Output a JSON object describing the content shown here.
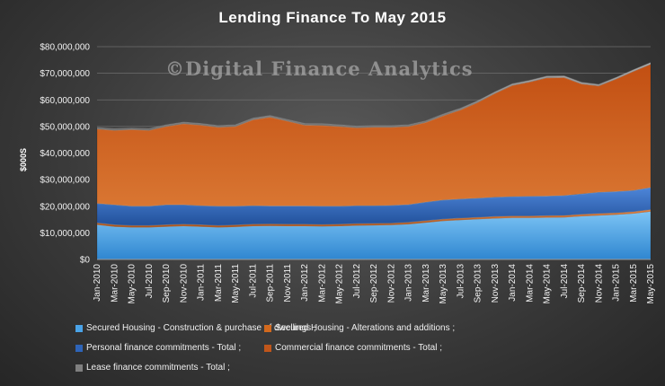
{
  "chart_data": {
    "type": "area",
    "stacked": true,
    "title": "Lending Finance To May 2015",
    "watermark": "©Digital Finance Analytics",
    "ylabel": "$000S",
    "xlabel": "",
    "ylim": [
      0,
      80000000
    ],
    "yticks": [
      "$0",
      "$10,000,000",
      "$20,000,000",
      "$30,000,000",
      "$40,000,000",
      "$50,000,000",
      "$60,000,000",
      "$70,000,000",
      "$80,000,000"
    ],
    "xticks": [
      "Jan-2010",
      "Mar-2010",
      "May-2010",
      "Jul-2010",
      "Sep-2010",
      "Nov-2010",
      "Jan-2011",
      "Mar-2011",
      "May-2011",
      "Jul-2011",
      "Sep-2011",
      "Nov-2011",
      "Jan-2012",
      "Mar-2012",
      "May-2012",
      "Jul-2012",
      "Sep-2012",
      "Nov-2012",
      "Jan-2013",
      "Mar-2013",
      "May-2013",
      "Jul-2013",
      "Sep-2013",
      "Nov-2013",
      "Jan-2014",
      "Mar-2014",
      "May-2014",
      "Jul-2014",
      "Sep-2014",
      "Nov-2014",
      "Jan-2015",
      "Mar-2015",
      "May-2015"
    ],
    "grid": true,
    "legend_position": "bottom",
    "series": [
      {
        "name": "Secured Housing - Construction & purchase of dwellings ;",
        "color": "#4aa3e8",
        "values": [
          13000000,
          12300000,
          12000000,
          12000000,
          12300000,
          12500000,
          12300000,
          12000000,
          12200000,
          12500000,
          12600000,
          12500000,
          12500000,
          12400000,
          12500000,
          12700000,
          12800000,
          12900000,
          13200000,
          13800000,
          14400000,
          14800000,
          15100000,
          15400000,
          15600000,
          15600000,
          15700000,
          15800000,
          16200000,
          16500000,
          16800000,
          17200000,
          18000000
        ]
      },
      {
        "name": "Secured Housing - Alterations and additions ;",
        "color": "#d2691e",
        "values": [
          700000,
          700000,
          700000,
          700000,
          700000,
          700000,
          700000,
          700000,
          700000,
          700000,
          700000,
          700000,
          700000,
          700000,
          700000,
          700000,
          700000,
          700000,
          700000,
          700000,
          700000,
          700000,
          700000,
          700000,
          700000,
          700000,
          700000,
          700000,
          700000,
          700000,
          700000,
          700000,
          700000
        ]
      },
      {
        "name": "Personal finance commitments - Total ;",
        "color": "#2e64b8",
        "values": [
          7300000,
          7500000,
          7300000,
          7300000,
          7500000,
          7300000,
          7200000,
          7300000,
          7100000,
          7000000,
          6800000,
          6900000,
          6900000,
          6900000,
          6800000,
          6800000,
          6700000,
          6700000,
          6700000,
          7000000,
          7200000,
          7200000,
          7200000,
          7300000,
          7300000,
          7400000,
          7400000,
          7500000,
          7700000,
          8000000,
          8000000,
          8000000,
          8300000
        ]
      },
      {
        "name": "Commercial finance commitments - Total ;",
        "color": "#c0561b",
        "values": [
          28000000,
          28000000,
          28800000,
          28500000,
          29500000,
          30500000,
          30300000,
          29700000,
          30000000,
          32300000,
          33400000,
          31900000,
          30400000,
          30400000,
          30000000,
          29300000,
          29500000,
          29400000,
          29400000,
          30000000,
          31700000,
          33500000,
          36000000,
          39000000,
          41800000,
          43000000,
          44500000,
          44400000,
          41400000,
          40000000,
          42300000,
          44800000,
          46400000
        ]
      },
      {
        "name": "Lease finance commitments - Total ;",
        "color": "#7f7f7f",
        "values": [
          600000,
          600000,
          600000,
          600000,
          600000,
          600000,
          600000,
          600000,
          600000,
          600000,
          600000,
          600000,
          600000,
          600000,
          600000,
          600000,
          600000,
          600000,
          600000,
          600000,
          600000,
          600000,
          600000,
          600000,
          600000,
          600000,
          600000,
          600000,
          600000,
          600000,
          600000,
          600000,
          600000
        ]
      }
    ]
  }
}
